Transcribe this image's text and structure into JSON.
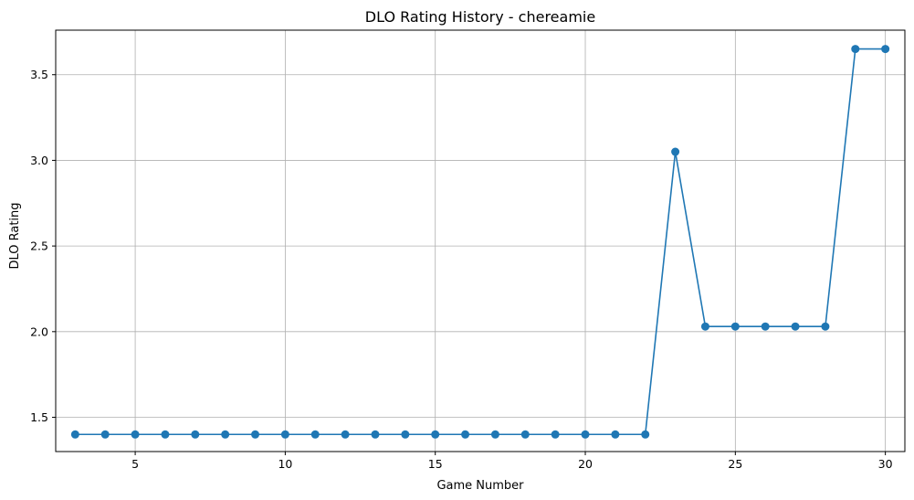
{
  "chart_data": {
    "type": "line",
    "title": "DLO Rating History - chereamie",
    "xlabel": "Game Number",
    "ylabel": "DLO Rating",
    "xlim": [
      2.35,
      30.65
    ],
    "ylim": [
      1.3,
      3.76
    ],
    "xticks": [
      5,
      10,
      15,
      20,
      25,
      30
    ],
    "yticks": [
      1.5,
      2.0,
      2.5,
      3.0,
      3.5
    ],
    "xtick_labels": [
      "5",
      "10",
      "15",
      "20",
      "25",
      "30"
    ],
    "ytick_labels": [
      "1.5",
      "2.0",
      "2.5",
      "3.0",
      "3.5"
    ],
    "grid": true,
    "color": "#1f77b4",
    "marker": "circle",
    "series": [
      {
        "x": [
          3,
          4,
          5,
          6,
          7,
          8,
          9,
          10,
          11,
          12,
          13,
          14,
          15,
          16,
          17,
          18,
          19,
          20,
          21,
          22,
          23,
          24,
          25,
          26,
          27,
          28,
          29,
          30
        ],
        "y": [
          1.4,
          1.4,
          1.4,
          1.4,
          1.4,
          1.4,
          1.4,
          1.4,
          1.4,
          1.4,
          1.4,
          1.4,
          1.4,
          1.4,
          1.4,
          1.4,
          1.4,
          1.4,
          1.4,
          1.4,
          3.05,
          2.03,
          2.03,
          2.03,
          2.03,
          2.03,
          3.65,
          3.65
        ]
      }
    ]
  }
}
